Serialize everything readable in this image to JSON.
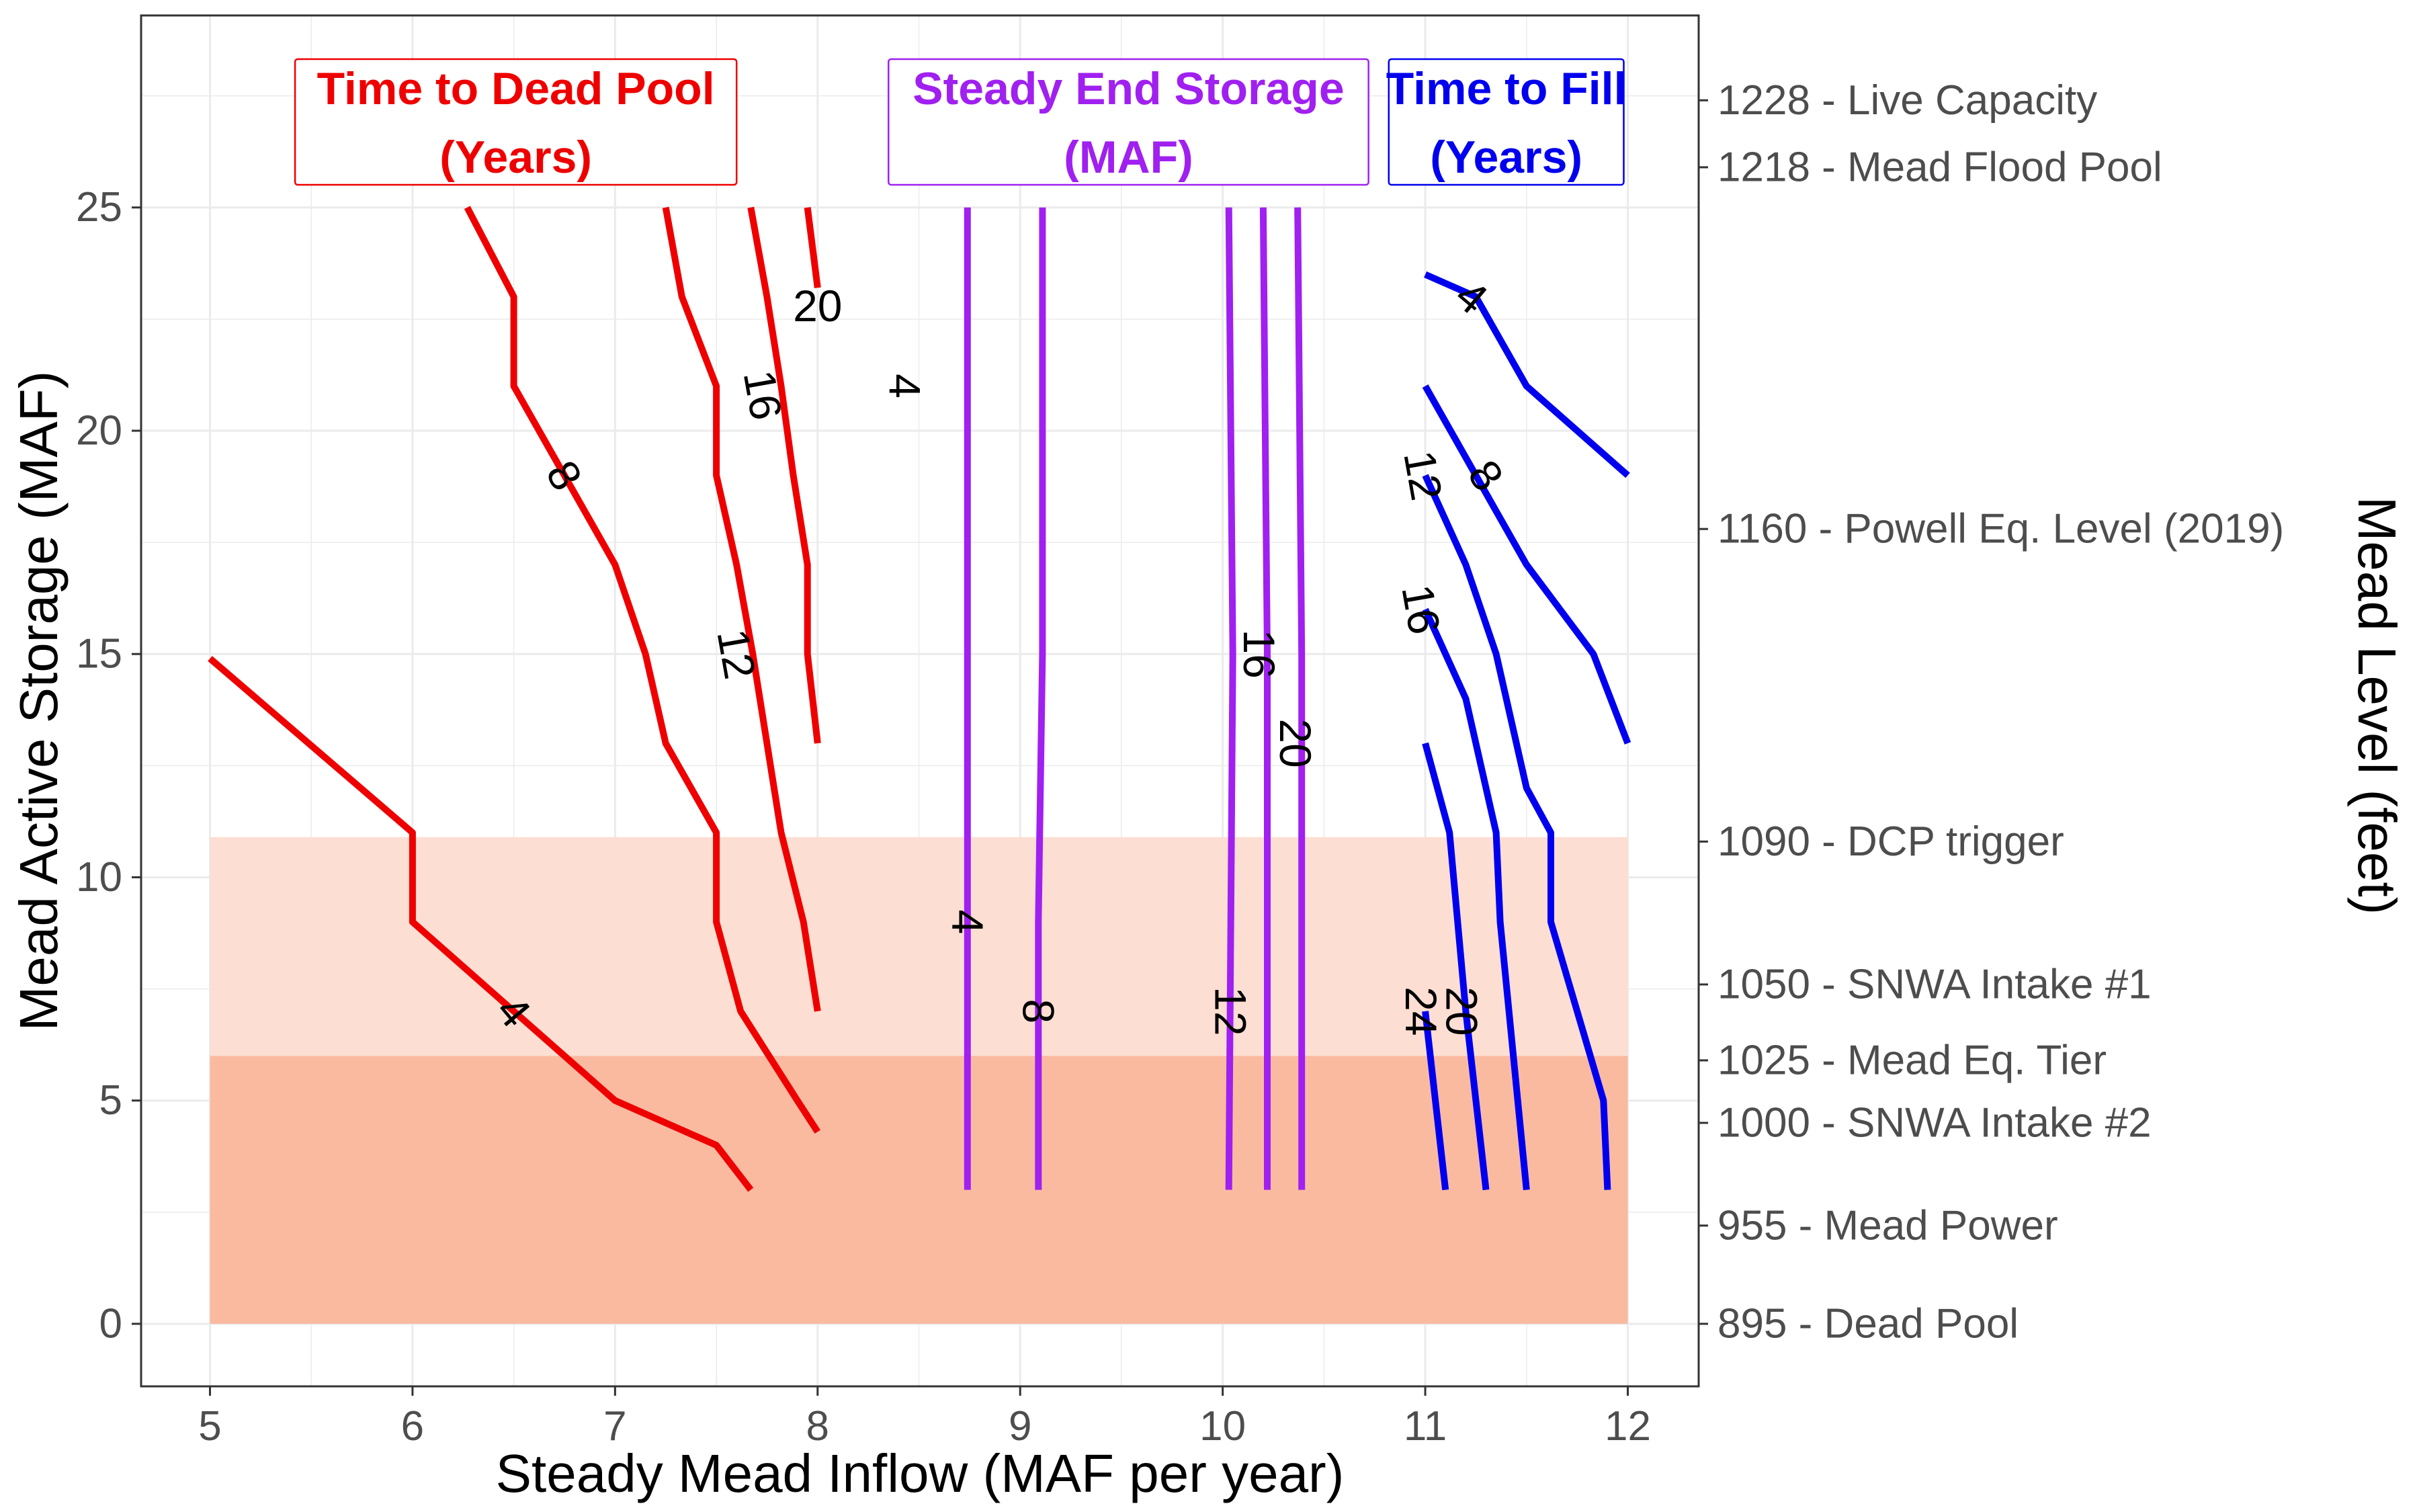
{
  "chart_data": {
    "type": "line",
    "title": "",
    "xlabel": "Steady Mead Inflow  (MAF per year)",
    "ylabel": "Mead Active Storage (MAF)",
    "y2label": "Mead Level (feet)",
    "xlim": [
      4.66,
      12.35
    ],
    "ylim": [
      -1.4,
      29.3
    ],
    "x_ticks": [
      5,
      6,
      7,
      8,
      9,
      10,
      11,
      12
    ],
    "y_ticks": [
      0,
      5,
      10,
      15,
      20,
      25
    ],
    "grid": true,
    "colors": {
      "dead_pool": "#ee0000",
      "end_storage": "#a020f0",
      "fill": "#0000ee",
      "band_light": "#fcdfd2",
      "band_dark": "#fabaa0",
      "grid": "#ebebeb",
      "axis_text": "#4d4d4d"
    },
    "bands": [
      {
        "name": "light",
        "x": [
          5,
          12
        ],
        "y": [
          6.0,
          10.9
        ]
      },
      {
        "name": "dark",
        "x": [
          5,
          12
        ],
        "y": [
          0,
          6.0
        ]
      }
    ],
    "right_axis": [
      {
        "storage": 27.4,
        "level": "1228",
        "label": "Live Capacity"
      },
      {
        "storage": 25.9,
        "level": "1218",
        "label": "Mead Flood Pool"
      },
      {
        "storage": 17.8,
        "level": "1160",
        "label": "Powell Eq. Level (2019)"
      },
      {
        "storage": 10.8,
        "level": "1090",
        "label": "DCP trigger"
      },
      {
        "storage": 7.6,
        "level": "1050",
        "label": "SNWA Intake #1"
      },
      {
        "storage": 5.9,
        "level": "1025",
        "label": "Mead Eq. Tier"
      },
      {
        "storage": 4.5,
        "level": "1000",
        "label": "SNWA Intake #2"
      },
      {
        "storage": 2.2,
        "level": "955",
        "label": "Mead Power"
      },
      {
        "storage": 0.0,
        "level": "895",
        "label": "Dead Pool"
      }
    ],
    "legend_boxes": [
      {
        "group": "dead_pool",
        "line1": "Time to Dead Pool",
        "line2": "(Years)",
        "x_range": [
          5.42,
          7.6
        ]
      },
      {
        "group": "end_storage",
        "line1": "Steady End Storage",
        "line2": "(MAF)",
        "x_range": [
          8.35,
          10.72
        ]
      },
      {
        "group": "fill",
        "line1": "Time to Fill",
        "line2": "(Years)",
        "x_range": [
          10.82,
          11.98
        ]
      }
    ],
    "series": [
      {
        "group": "dead_pool",
        "label": "4",
        "label_at": [
          6.5,
          7.0
        ],
        "label_angle": 50,
        "points": [
          [
            5.0,
            14.9
          ],
          [
            6.0,
            11.0
          ],
          [
            6.0,
            9.0
          ],
          [
            7.0,
            5.0
          ],
          [
            7.5,
            4.0
          ],
          [
            7.67,
            3.0
          ]
        ]
      },
      {
        "group": "dead_pool",
        "label": "8",
        "label_at": [
          6.75,
          19.0
        ],
        "label_angle": 60,
        "points": [
          [
            6.27,
            25.0
          ],
          [
            6.5,
            23.0
          ],
          [
            6.5,
            21.0
          ],
          [
            7.0,
            17.0
          ],
          [
            7.15,
            15.0
          ],
          [
            7.25,
            13.0
          ],
          [
            7.5,
            11.0
          ],
          [
            7.5,
            9.0
          ],
          [
            7.62,
            7.0
          ],
          [
            7.9,
            5.0
          ],
          [
            8.0,
            4.3
          ]
        ]
      },
      {
        "group": "dead_pool",
        "label": "12",
        "label_at": [
          7.6,
          15.0
        ],
        "label_angle": 80,
        "points": [
          [
            7.25,
            25.0
          ],
          [
            7.33,
            23.0
          ],
          [
            7.5,
            21.0
          ],
          [
            7.5,
            19.0
          ],
          [
            7.6,
            17.0
          ],
          [
            7.68,
            15.0
          ],
          [
            7.75,
            13.0
          ],
          [
            7.82,
            11.0
          ],
          [
            7.93,
            9.0
          ],
          [
            8.0,
            7.0
          ]
        ]
      },
      {
        "group": "dead_pool",
        "label": "16",
        "label_at": [
          7.73,
          20.8
        ],
        "label_angle": 80,
        "points": [
          [
            7.67,
            25.0
          ],
          [
            7.75,
            23.0
          ],
          [
            7.82,
            21.0
          ],
          [
            7.88,
            19.0
          ],
          [
            7.95,
            17.0
          ],
          [
            7.95,
            15.0
          ],
          [
            8.0,
            13.0
          ]
        ]
      },
      {
        "group": "dead_pool",
        "label": "20",
        "label_at": [
          8.0,
          22.8
        ],
        "label_angle": 0,
        "points": [
          [
            7.95,
            25.0
          ],
          [
            8.0,
            23.2
          ]
        ]
      },
      {
        "group": "end_storage",
        "label": "4",
        "label_at": [
          8.43,
          21.0
        ],
        "label_angle": 90,
        "points": [
          [
            8.74,
            25.0
          ],
          [
            8.74,
            3.0
          ]
        ]
      },
      {
        "group": "end_storage",
        "label": "4",
        "label_at": [
          8.74,
          9.0
        ],
        "label_angle": 90,
        "points": []
      },
      {
        "group": "end_storage",
        "label": "8",
        "label_at": [
          9.09,
          7.0
        ],
        "label_angle": 90,
        "points": [
          [
            9.11,
            25.0
          ],
          [
            9.11,
            15.0
          ],
          [
            9.09,
            9.0
          ],
          [
            9.09,
            3.0
          ]
        ]
      },
      {
        "group": "end_storage",
        "label": "12",
        "label_at": [
          10.04,
          7.0
        ],
        "label_angle": 90,
        "points": [
          [
            10.03,
            25.0
          ],
          [
            10.04,
            20.0
          ],
          [
            10.05,
            15.0
          ],
          [
            10.04,
            9.0
          ],
          [
            10.03,
            3.0
          ]
        ]
      },
      {
        "group": "end_storage",
        "label": "16",
        "label_at": [
          10.18,
          15.0
        ],
        "label_angle": 90,
        "points": [
          [
            10.2,
            25.0
          ],
          [
            10.21,
            20.0
          ],
          [
            10.22,
            15.0
          ],
          [
            10.22,
            3.0
          ]
        ]
      },
      {
        "group": "end_storage",
        "label": "20",
        "label_at": [
          10.36,
          13.0
        ],
        "label_angle": 90,
        "points": [
          [
            10.37,
            25.0
          ],
          [
            10.38,
            20.0
          ],
          [
            10.39,
            15.0
          ],
          [
            10.39,
            3.0
          ]
        ]
      },
      {
        "group": "fill",
        "label": "4",
        "label_at": [
          11.23,
          23.0
        ],
        "label_angle": 40,
        "points": [
          [
            11.0,
            23.5
          ],
          [
            11.25,
            23.0
          ],
          [
            11.5,
            21.0
          ],
          [
            12.0,
            19.0
          ]
        ]
      },
      {
        "group": "fill",
        "label": "8",
        "label_at": [
          11.3,
          19.0
        ],
        "label_angle": 55,
        "points": [
          [
            11.0,
            21.0
          ],
          [
            11.25,
            19.0
          ],
          [
            11.5,
            17.0
          ],
          [
            11.83,
            15.0
          ],
          [
            12.0,
            13.0
          ]
        ]
      },
      {
        "group": "fill",
        "label": "12",
        "label_at": [
          10.99,
          19.0
        ],
        "label_angle": 80,
        "points": [
          [
            11.0,
            19.0
          ],
          [
            11.2,
            17.0
          ],
          [
            11.35,
            15.0
          ],
          [
            11.5,
            12.0
          ],
          [
            11.62,
            11.0
          ],
          [
            11.62,
            9.0
          ],
          [
            11.88,
            5.0
          ],
          [
            11.9,
            3.0
          ]
        ]
      },
      {
        "group": "fill",
        "label": "16",
        "label_at": [
          10.98,
          16.0
        ],
        "label_angle": 80,
        "points": [
          [
            11.0,
            16.0
          ],
          [
            11.2,
            14.0
          ],
          [
            11.3,
            12.0
          ],
          [
            11.35,
            11.0
          ],
          [
            11.37,
            9.0
          ],
          [
            11.5,
            3.0
          ]
        ]
      },
      {
        "group": "fill",
        "label": "20",
        "label_at": [
          11.18,
          7.0
        ],
        "label_angle": 90,
        "points": [
          [
            11.0,
            13.0
          ],
          [
            11.12,
            11.0
          ],
          [
            11.2,
            7.0
          ],
          [
            11.3,
            3.0
          ]
        ]
      },
      {
        "group": "fill",
        "label": "24",
        "label_at": [
          10.98,
          7.0
        ],
        "label_angle": 90,
        "points": [
          [
            11.0,
            7.0
          ],
          [
            11.1,
            3.0
          ]
        ]
      }
    ]
  }
}
